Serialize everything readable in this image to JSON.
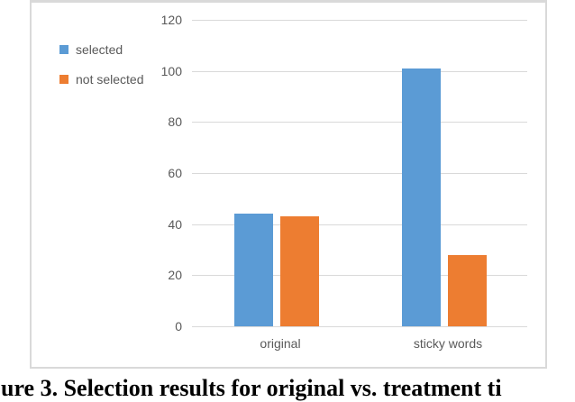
{
  "figure": {
    "caption_visible_text": "ure 3. Selection results for original vs. treatment ti"
  },
  "chart_data": {
    "type": "bar",
    "title": "",
    "xlabel": "",
    "ylabel": "",
    "categories": [
      "original",
      "sticky words"
    ],
    "series": [
      {
        "name": "selected",
        "color": "#5b9bd5",
        "values": [
          44,
          101
        ]
      },
      {
        "name": "not selected",
        "color": "#ed7d31",
        "values": [
          43,
          28
        ]
      }
    ],
    "ylim": [
      0,
      120
    ],
    "yticks": [
      0,
      20,
      40,
      60,
      80,
      100,
      120
    ],
    "grid": true,
    "legend_position": "top-left-inside",
    "grid_color": "#d9d9d9",
    "axis_text_color": "#595959",
    "frame_border_color": "#d9d9d9"
  }
}
